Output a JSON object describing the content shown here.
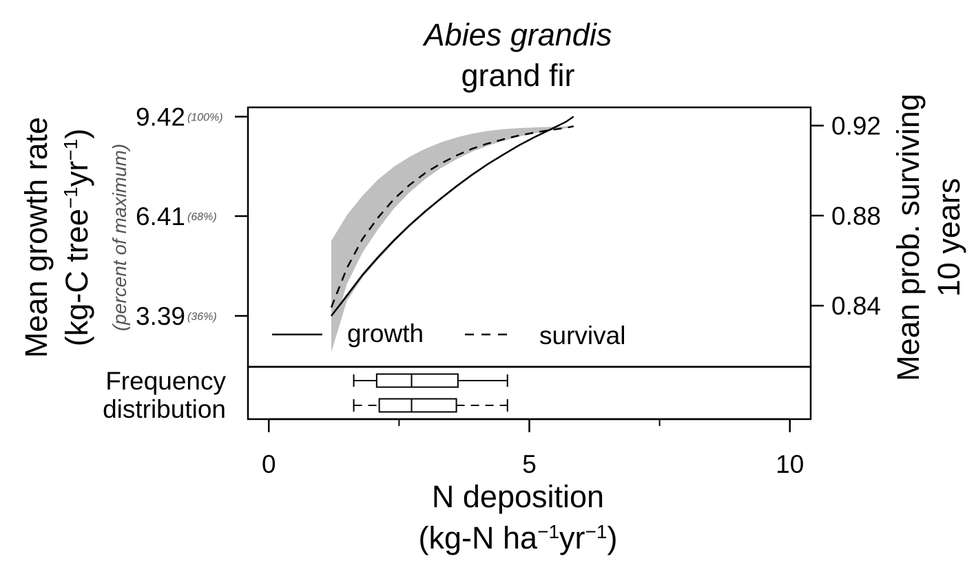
{
  "chart_data": {
    "type": "line",
    "title": "Abies grandis",
    "subtitle": "grand fir",
    "xlabel": "N deposition",
    "xlabel_units": {
      "prefix": "(kg-N ha",
      "exp1": "−1",
      "mid": "yr",
      "exp2": "−1",
      "suffix": ")"
    },
    "ylabel": "Mean growth rate",
    "ylabel_units": {
      "prefix": "(kg-C tree",
      "exp1": "−1",
      "mid": "yr",
      "exp2": "−1",
      "suffix": ")"
    },
    "ylabel_sub": "(percent of maximum)",
    "y2label": [
      "Mean prob. surviving",
      "10 years"
    ],
    "xlim": [
      -0.4,
      10.4
    ],
    "xticks": [
      0,
      5,
      10
    ],
    "xtick_labels": [
      "0",
      "5",
      "10"
    ],
    "xminor_ticks": [
      2.5,
      7.5
    ],
    "ylim": [
      1.85,
      9.7
    ],
    "yticks": [
      {
        "value": 9.42,
        "label": "9.42",
        "pct": "(100%)"
      },
      {
        "value": 6.41,
        "label": "6.41",
        "pct": "(68%)"
      },
      {
        "value": 3.39,
        "label": "3.39",
        "pct": "(36%)"
      }
    ],
    "y2lim": [
      0.8128,
      0.9281
    ],
    "y2ticks": [
      {
        "value": 0.92,
        "label": "0.92"
      },
      {
        "value": 0.88,
        "label": "0.88"
      },
      {
        "value": 0.84,
        "label": "0.84"
      }
    ],
    "legend": {
      "position": "bottom-left",
      "entries": [
        {
          "label": "growth",
          "style": "solid"
        },
        {
          "label": "survival",
          "style": "dashed"
        }
      ]
    },
    "series": [
      {
        "name": "growth",
        "axis": "left",
        "style": "solid",
        "x": [
          1.2,
          1.5,
          1.8,
          2.1,
          2.4,
          2.7,
          3.0,
          3.3,
          3.6,
          3.9,
          4.2,
          4.5,
          4.8,
          5.1,
          5.4,
          5.7,
          5.85
        ],
        "y": [
          3.39,
          4.0,
          4.63,
          5.17,
          5.67,
          6.13,
          6.55,
          6.94,
          7.31,
          7.66,
          7.98,
          8.27,
          8.55,
          8.8,
          9.03,
          9.26,
          9.42
        ],
        "band_low": [
          2.3,
          3.85,
          4.55,
          5.1,
          5.61,
          6.08,
          6.5,
          6.9,
          7.27,
          7.62,
          7.95,
          8.25,
          8.53,
          8.79,
          9.02,
          9.25,
          9.42
        ],
        "band_high": [
          3.4,
          4.08,
          4.7,
          5.24,
          5.73,
          6.18,
          6.6,
          6.98,
          7.35,
          7.7,
          8.01,
          8.3,
          8.57,
          8.82,
          9.05,
          9.27,
          9.42
        ]
      },
      {
        "name": "survival",
        "axis": "right",
        "style": "dashed",
        "x": [
          1.2,
          1.5,
          1.8,
          2.1,
          2.4,
          2.7,
          3.0,
          3.3,
          3.6,
          3.9,
          4.2,
          4.5,
          4.8,
          5.1,
          5.4,
          5.7,
          5.85
        ],
        "y": [
          0.8392,
          0.8567,
          0.8697,
          0.8792,
          0.8873,
          0.8936,
          0.8989,
          0.9031,
          0.9067,
          0.9097,
          0.912,
          0.9139,
          0.9156,
          0.9169,
          0.918,
          0.919,
          0.9197
        ],
        "band_low": [
          0.8268,
          0.8497,
          0.8636,
          0.8741,
          0.8831,
          0.8903,
          0.8962,
          0.9011,
          0.905,
          0.9084,
          0.911,
          0.9132,
          0.9151,
          0.9165,
          0.9177,
          0.9188,
          0.9197
        ],
        "band_high": [
          0.8688,
          0.8802,
          0.8889,
          0.8961,
          0.9017,
          0.9061,
          0.9097,
          0.9125,
          0.9147,
          0.9164,
          0.9176,
          0.9184,
          0.9189,
          0.9192,
          0.9194,
          0.9196,
          0.9197
        ]
      }
    ],
    "frequency_distribution": {
      "label": [
        "Frequency",
        "distribution"
      ],
      "boxplots": [
        {
          "name": "growth",
          "style": "solid",
          "whisker_low": 1.63,
          "q1": 2.07,
          "median": 2.74,
          "q3": 3.63,
          "whisker_high": 4.58
        },
        {
          "name": "survival",
          "style": "dashed",
          "whisker_low": 1.63,
          "q1": 2.12,
          "median": 2.74,
          "q3": 3.6,
          "whisker_high": 4.58
        }
      ]
    }
  }
}
